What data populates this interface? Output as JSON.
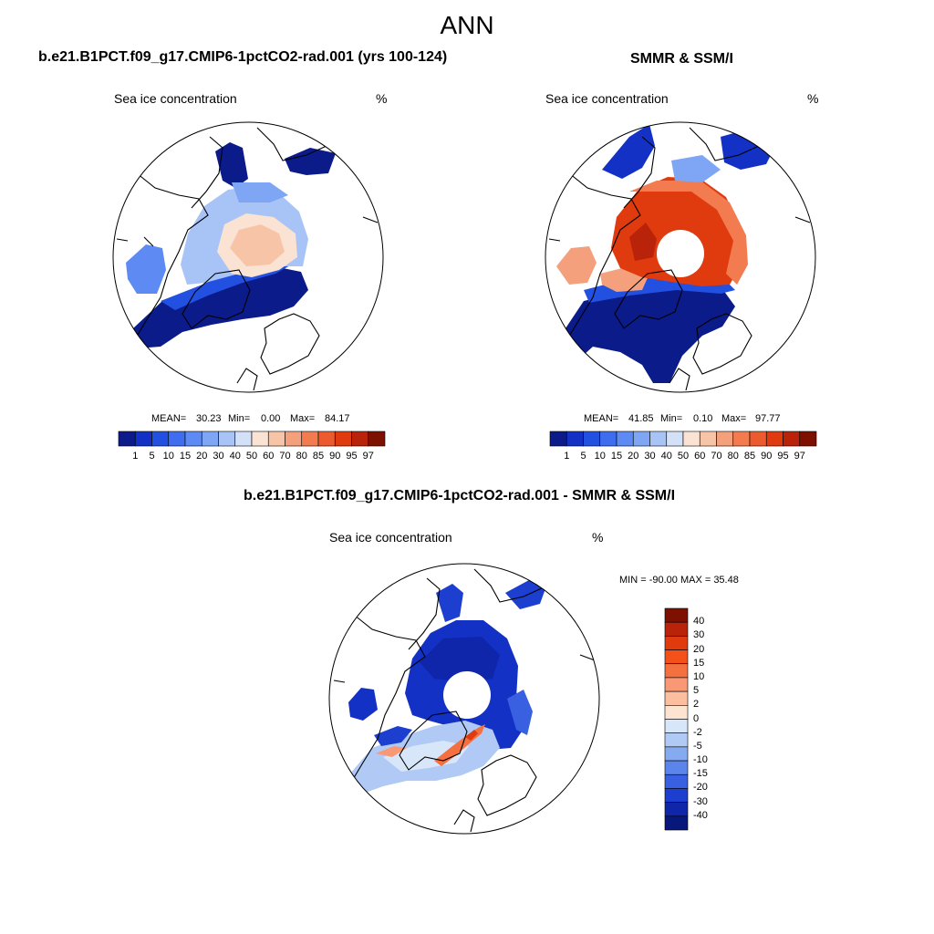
{
  "figure": {
    "title": "ANN"
  },
  "panels": [
    {
      "title": "b.e21.B1PCT.f09_g17.CMIP6-1pctCO2-rad.001 (yrs 100-124)",
      "left_label": "Sea ice concentration",
      "right_label": "%",
      "stats": {
        "mean_label": "MEAN=",
        "mean": "30.23",
        "min_label": "Min=",
        "min": "0.00",
        "max_label": "Max=",
        "max": "84.17"
      }
    },
    {
      "title": "SMMR & SSM/I",
      "left_label": "Sea ice concentration",
      "right_label": "%",
      "stats": {
        "mean_label": "MEAN=",
        "mean": "41.85",
        "min_label": "Min=",
        "min": "0.10",
        "max_label": "Max=",
        "max": "97.77"
      }
    },
    {
      "title": "b.e21.B1PCT.f09_g17.CMIP6-1pctCO2-rad.001 - SMMR & SSM/I",
      "left_label": "Sea ice concentration",
      "right_label": "%",
      "minmax": "MIN = -90.00 MAX =  35.48"
    }
  ],
  "chart_data": [
    {
      "type": "heatmap",
      "title": "b.e21.B1PCT.f09_g17.CMIP6-1pctCO2-rad.001 (yrs 100-124)",
      "variable": "Sea ice concentration",
      "units": "%",
      "mean": 30.23,
      "min": 0.0,
      "max": 84.17,
      "colorbar": {
        "orientation": "horizontal",
        "levels": [
          "1",
          "5",
          "10",
          "15",
          "20",
          "30",
          "40",
          "50",
          "60",
          "70",
          "80",
          "85",
          "90",
          "95",
          "97"
        ],
        "colors": [
          "#0b1b8a",
          "#1331c4",
          "#2250e0",
          "#3f6df0",
          "#5e8af3",
          "#7ea6f5",
          "#a8c3f6",
          "#d2e0f8",
          "#fbe3d4",
          "#f8c4a7",
          "#f4a07c",
          "#f27c50",
          "#ec5b2e",
          "#e03a0f",
          "#b8230a",
          "#7e1000"
        ]
      }
    },
    {
      "type": "heatmap",
      "title": "SMMR & SSM/I",
      "variable": "Sea ice concentration",
      "units": "%",
      "mean": 41.85,
      "min": 0.1,
      "max": 97.77,
      "colorbar": {
        "orientation": "horizontal",
        "levels": [
          "1",
          "5",
          "10",
          "15",
          "20",
          "30",
          "40",
          "50",
          "60",
          "70",
          "80",
          "85",
          "90",
          "95",
          "97"
        ],
        "colors": [
          "#0b1b8a",
          "#1331c4",
          "#2250e0",
          "#3f6df0",
          "#5e8af3",
          "#7ea6f5",
          "#a8c3f6",
          "#d2e0f8",
          "#fbe3d4",
          "#f8c4a7",
          "#f4a07c",
          "#f27c50",
          "#ec5b2e",
          "#e03a0f",
          "#b8230a",
          "#7e1000"
        ]
      }
    },
    {
      "type": "heatmap",
      "title": "b.e21.B1PCT.f09_g17.CMIP6-1pctCO2-rad.001 - SMMR & SSM/I",
      "variable": "Sea ice concentration",
      "units": "%",
      "min": -90.0,
      "max": 35.48,
      "colorbar": {
        "orientation": "vertical",
        "levels": [
          "40",
          "30",
          "20",
          "15",
          "10",
          "5",
          "2",
          "0",
          "-2",
          "-5",
          "-10",
          "-15",
          "-20",
          "-30",
          "-40"
        ],
        "colors": [
          "#7e1000",
          "#b8230a",
          "#e03a0f",
          "#f4501a",
          "#f4703f",
          "#f89874",
          "#fbbfa0",
          "#fde4d2",
          "#d8e6fa",
          "#b0caf5",
          "#86aaf0",
          "#5b85ea",
          "#3860e0",
          "#1d3fd0",
          "#0f25aa",
          "#07177a"
        ]
      }
    }
  ]
}
